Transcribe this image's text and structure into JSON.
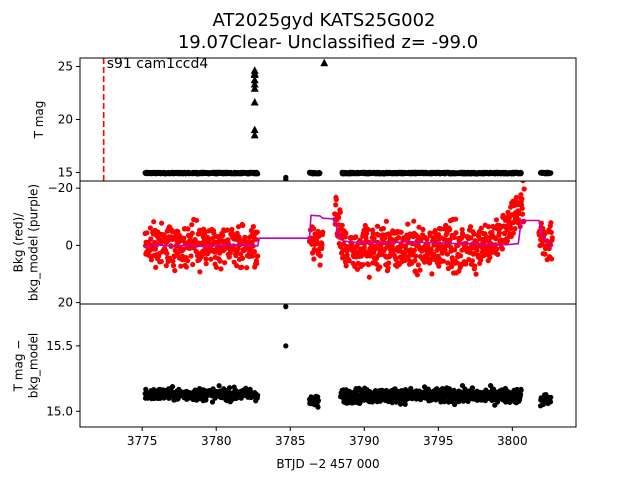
{
  "chart_data": {
    "type": "scatter",
    "title_line1": "AT2025gyd  KATS25G002",
    "title_line2": "19.07Clear- Unclassified z= -99.0",
    "xlabel": "BTJD −2 457 000",
    "xlim": [
      3770.8,
      3804.3
    ],
    "xticks": [
      3775,
      3780,
      3785,
      3790,
      3795,
      3800
    ],
    "xtick_labels": [
      "3775",
      "3780",
      "3785",
      "3790",
      "3795",
      "3800"
    ],
    "panels": [
      {
        "name": "tmag",
        "ylabel": [
          "T mag"
        ],
        "ylim": [
          25.8,
          14.2
        ],
        "yticks": [
          15,
          20,
          25
        ],
        "ytick_labels": [
          "15",
          "20",
          "25"
        ],
        "annotation": "s91 cam1ccd4",
        "vline": {
          "x": 3772.4,
          "color": "#ff0000",
          "style": "dashed"
        },
        "series": [
          {
            "kind": "points",
            "color": "#000000",
            "segments": [
              [
                3775.2,
                3782.8
              ],
              [
                3786.3,
                3787.0
              ],
              [
                3788.5,
                3800.6
              ],
              [
                3801.9,
                3802.6
              ]
            ],
            "y": 14.95
          },
          {
            "kind": "triangles",
            "color": "#000000",
            "x": [
              3782.6,
              3782.6,
              3782.6,
              3782.6,
              3782.6,
              3782.6,
              3782.6,
              3782.6,
              3782.6,
              3787.3
            ],
            "y": [
              21.6,
              24.2,
              24.6,
              22.9,
              23.3,
              18.5,
              19.0,
              24.3,
              23.7,
              25.3
            ]
          },
          {
            "kind": "points",
            "color": "#000000",
            "x": [
              3784.7,
              3784.7
            ],
            "y": [
              14.35,
              14.55
            ]
          }
        ]
      },
      {
        "name": "bkg",
        "ylabel": [
          "Bkg (red)/",
          "bkg_model (purple)"
        ],
        "ylim": [
          -22.5,
          20.5
        ],
        "yticks": [
          -20,
          0,
          20
        ],
        "ytick_labels": [
          "−20",
          "0",
          "20"
        ],
        "series": [
          {
            "kind": "points",
            "color": "#ff0000",
            "name": "bkg",
            "segments": [
              [
                3775.2,
                3782.8
              ],
              [
                3786.3,
                3787.2
              ],
              [
                3788.0,
                3800.8
              ],
              [
                3801.8,
                3802.7
              ]
            ],
            "center": [
              0,
              -2,
              1,
              -2
            ],
            "spread": [
              8,
              8,
              9,
              8
            ]
          },
          {
            "kind": "line",
            "color": "#bf00bf",
            "name": "bkg_model",
            "x": [
              3775.2,
              3776,
              3777,
              3778,
              3779,
              3780,
              3781,
              3782,
              3782.8,
              3782.9,
              3784,
              3785,
              3786.3,
              3786.4,
              3787.0,
              3787.2,
              3788.0,
              3788.3,
              3788.6,
              3789,
              3790,
              3791,
              3792,
              3793,
              3794,
              3795,
              3796,
              3797,
              3798,
              3799,
              3799.8,
              3800.4,
              3800.6,
              3800.8,
              3801.8,
              3802.0,
              3802.7
            ],
            "y": [
              0.5,
              -0.2,
              0.3,
              0.0,
              0.4,
              0.2,
              -0.2,
              0.1,
              0.2,
              -2.5,
              -2.5,
              -2.5,
              -2.5,
              -10.5,
              -10.3,
              -9.5,
              -9.2,
              -3.0,
              -1.6,
              -1.2,
              -0.8,
              -1.1,
              -1.0,
              -1.3,
              -1.0,
              -0.9,
              -0.7,
              -0.6,
              -0.4,
              -0.2,
              -0.3,
              -0.6,
              -8.5,
              -8.7,
              -8.7,
              -3.5,
              0.5
            ]
          }
        ]
      },
      {
        "name": "diff",
        "ylabel": [
          "T mag −",
          "bkg_model"
        ],
        "ylim": [
          15.82,
          14.88
        ],
        "yticks": [
          15.0,
          15.5
        ],
        "ytick_labels": [
          "15.0",
          "15.5"
        ],
        "series": [
          {
            "kind": "points",
            "color": "#000000",
            "segments": [
              [
                3775.2,
                3782.8
              ],
              [
                3786.3,
                3786.9
              ],
              [
                3788.4,
                3800.6
              ],
              [
                3801.9,
                3802.6
              ]
            ],
            "center": [
              15.13,
              15.07,
              15.12,
              15.09
            ],
            "spread": [
              0.05,
              0.05,
              0.06,
              0.05
            ]
          },
          {
            "kind": "points",
            "color": "#000000",
            "x": [
              3784.7,
              3784.7
            ],
            "y": [
              15.5,
              15.8
            ]
          }
        ]
      }
    ]
  }
}
